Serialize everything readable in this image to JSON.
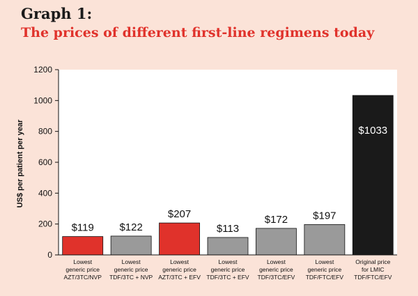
{
  "heading": {
    "label": "Graph 1:",
    "title": "The prices of different first-line regimens today"
  },
  "colors": {
    "background": "#fbe3d8",
    "plot_background": "#ffffff",
    "red": "#e0322b",
    "gray": "#9a9a9a",
    "black": "#1a1a1a",
    "title": "#e0322b"
  },
  "chart_data": {
    "type": "bar",
    "ylabel": "US$ per patient per year",
    "xlabel": "",
    "ylim": [
      0,
      1200
    ],
    "yticks": [
      0,
      200,
      400,
      600,
      800,
      1000,
      1200
    ],
    "grid": false,
    "categories": [
      [
        "Lowest",
        "generic price",
        "AZT/3TC/NVP"
      ],
      [
        "Lowest",
        "generic price",
        "TDF/3TC + NVP"
      ],
      [
        "Lowest",
        "generic price",
        "AZT/3TC + EFV"
      ],
      [
        "Lowest",
        "generic price",
        "TDF/3TC + EFV"
      ],
      [
        "Lowest",
        "generic price",
        "TDF/3TC/EFV"
      ],
      [
        "Lowest",
        "generic price",
        "TDF/FTC/EFV"
      ],
      [
        "Original price",
        "for LMIC",
        "TDF/FTC/EFV"
      ]
    ],
    "values": [
      119,
      122,
      207,
      113,
      172,
      197,
      1033
    ],
    "value_labels": [
      "$119",
      "$122",
      "$207",
      "$113",
      "$172",
      "$197",
      "$1033"
    ],
    "bar_colors": [
      "red",
      "gray",
      "red",
      "gray",
      "gray",
      "gray",
      "black"
    ]
  }
}
